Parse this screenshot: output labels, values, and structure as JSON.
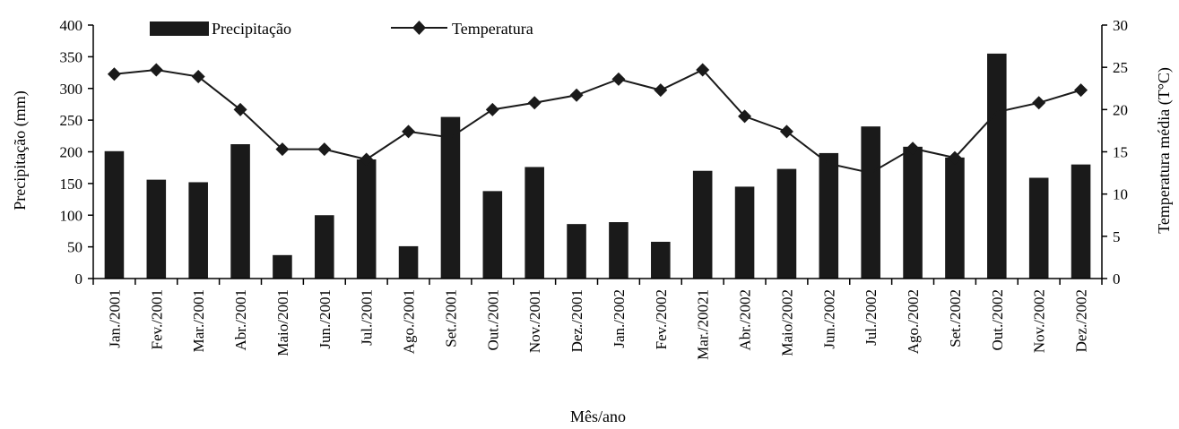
{
  "chart_data": {
    "type": "bar+line",
    "xlabel": "Mês/ano",
    "ylabel_left": "Precipitação (mm)",
    "ylabel_right": "Temperatura média (T°C)",
    "ylim_left": [
      0,
      400
    ],
    "ylim_right": [
      0,
      30
    ],
    "yticks_left": [
      "0",
      "50",
      "100",
      "150",
      "200",
      "250",
      "300",
      "350",
      "400"
    ],
    "yticks_right": [
      "0",
      "5",
      "10",
      "15",
      "20",
      "25",
      "30"
    ],
    "grid": false,
    "legend_position": "top",
    "categories": [
      "Jan./2001",
      "Fev./2001",
      "Mar./2001",
      "Abr./2001",
      "Maio/2001",
      "Jun./2001",
      "Jul./2001",
      "Ago./2001",
      "Set./2001",
      "Out./2001",
      "Nov./2001",
      "Dez./2001",
      "Jan./2002",
      "Fev./2002",
      "Mar./20021",
      "Abr./2002",
      "Maio/2002",
      "Jun./2002",
      "Jul./2002",
      "Ago./2002",
      "Set./2002",
      "Out./2002",
      "Nov./2002",
      "Dez./2002"
    ],
    "series": [
      {
        "name": "Precipitação",
        "type": "bar",
        "axis": "left",
        "color": "#1a1a1a",
        "values": [
          201,
          156,
          152,
          212,
          37,
          100,
          188,
          51,
          255,
          138,
          176,
          86,
          89,
          58,
          170,
          145,
          173,
          198,
          240,
          208,
          191,
          355,
          159,
          180
        ]
      },
      {
        "name": "Temperatura",
        "type": "line",
        "axis": "right",
        "color": "#1a1a1a",
        "marker": "diamond",
        "marker_indices": [
          0,
          1,
          2,
          3,
          4,
          5,
          6,
          7,
          9,
          10,
          11,
          12,
          13,
          14,
          15,
          16,
          19,
          20,
          22,
          23
        ],
        "values": [
          24.2,
          24.7,
          23.9,
          20.0,
          15.3,
          15.3,
          14.1,
          17.4,
          16.7,
          20.0,
          20.8,
          21.7,
          23.6,
          22.3,
          24.7,
          19.2,
          17.4,
          13.6,
          12.5,
          15.4,
          14.3,
          19.7,
          20.8,
          22.3
        ]
      }
    ]
  }
}
